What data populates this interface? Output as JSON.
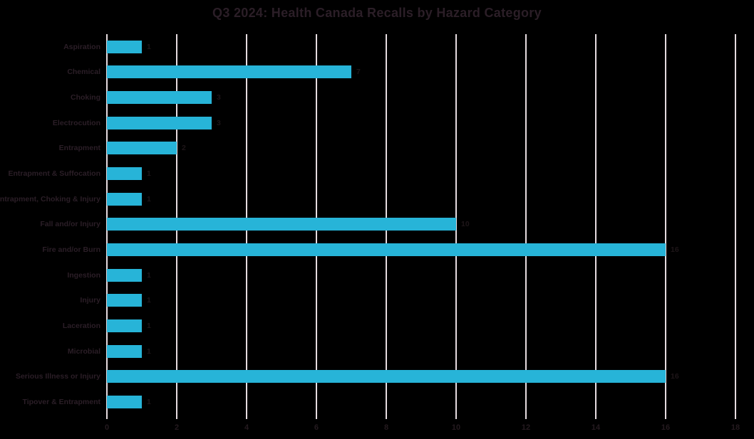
{
  "title": "Q3 2024: Health Canada Recalls by Hazard Category",
  "colors": {
    "background": "#000000",
    "bar": "#27b4d8",
    "gridline": "#e5dbdf",
    "title_text": "#2b1e27",
    "category_text": "#2b1e27",
    "tick_text": "#241a1f",
    "value_text": "#1d1518"
  },
  "chart_data": {
    "type": "bar",
    "orientation": "horizontal",
    "title": "Q3 2024: Health Canada Recalls by Hazard Category",
    "categories": [
      "Aspiration",
      "Chemical",
      "Choking",
      "Electrocution",
      "Entrapment",
      "Entrapment & Suffocation",
      "Entrapment, Choking & Injury",
      "Fall and/or Injury",
      "Fire and/or Burn",
      "Ingestion",
      "Injury",
      "Laceration",
      "Microbial",
      "Serious Illness or Injury",
      "Tipover & Entrapment"
    ],
    "values": [
      1,
      7,
      3,
      3,
      2,
      1,
      1,
      10,
      16,
      1,
      1,
      1,
      1,
      16,
      1
    ],
    "xlabel": "",
    "ylabel": "",
    "xlim": [
      0,
      18
    ],
    "xticks": [
      0,
      2,
      4,
      6,
      8,
      10,
      12,
      14,
      16,
      18
    ],
    "grid": true,
    "data_labels": true,
    "legend": false
  }
}
